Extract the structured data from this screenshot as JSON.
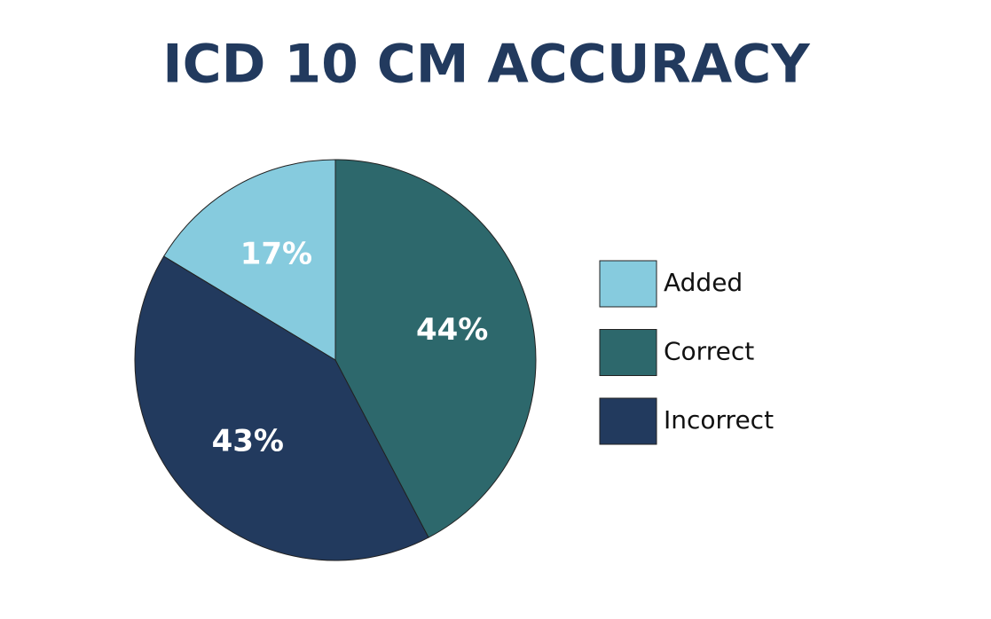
{
  "chart_data": {
    "type": "pie",
    "title": "ICD 10 CM ACCURACY",
    "categories": [
      "Added",
      "Correct",
      "Incorrect"
    ],
    "values": [
      17,
      44,
      43
    ],
    "value_labels": [
      "17%",
      "44%",
      "43%"
    ],
    "colors": [
      "#86cbde",
      "#2d686c",
      "#223a5e"
    ],
    "legend": "right"
  }
}
